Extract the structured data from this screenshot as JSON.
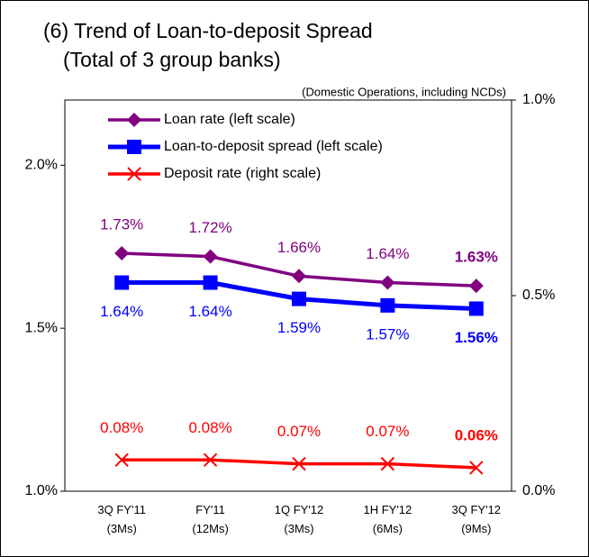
{
  "chart_data": {
    "type": "line",
    "title": [
      "(6) Trend of Loan-to-deposit Spread",
      "(Total of 3 group banks)"
    ],
    "subtitle": "(Domestic Operations, including NCDs)",
    "categories": [
      "3Q FY'11\n(3Ms)",
      "FY'11\n(12Ms)",
      "1Q FY'12\n(3Ms)",
      "1H FY'12\n(6Ms)",
      "3Q FY'12\n(9Ms)"
    ],
    "series": [
      {
        "name": "Loan rate (left scale)",
        "color": "#800080",
        "marker": "diamond",
        "values": [
          1.73,
          1.72,
          1.66,
          1.64,
          1.63
        ],
        "value_labels": [
          "1.73%",
          "1.72%",
          "1.66%",
          "1.64%",
          "1.63%"
        ]
      },
      {
        "name": "Loan-to-deposit spread (left scale)",
        "color": "#0000ff",
        "marker": "square",
        "values": [
          1.64,
          1.64,
          1.59,
          1.57,
          1.56
        ],
        "value_labels": [
          "1.64%",
          "1.64%",
          "1.59%",
          "1.57%",
          "1.56%"
        ]
      },
      {
        "name": "Deposit rate (right scale)",
        "color": "#ff0000",
        "marker": "x",
        "axis": "y2",
        "values": [
          0.08,
          0.08,
          0.07,
          0.07,
          0.06
        ],
        "value_labels": [
          "0.08%",
          "0.08%",
          "0.07%",
          "0.07%",
          "0.06%"
        ]
      }
    ],
    "ylim": [
      1.0,
      2.2
    ],
    "yticks": [
      {
        "value": 1.0,
        "label": "1.0%"
      },
      {
        "value": 1.5,
        "label": "1.5%"
      },
      {
        "value": 2.0,
        "label": "2.0%"
      }
    ],
    "y2lim": [
      0.0,
      1.0
    ],
    "y2ticks": [
      {
        "value": 0.0,
        "label": "0.0%"
      },
      {
        "value": 0.5,
        "label": "0.5%"
      },
      {
        "value": 1.0,
        "label": "1.0%"
      }
    ],
    "grid": false,
    "legend": "top-left"
  }
}
